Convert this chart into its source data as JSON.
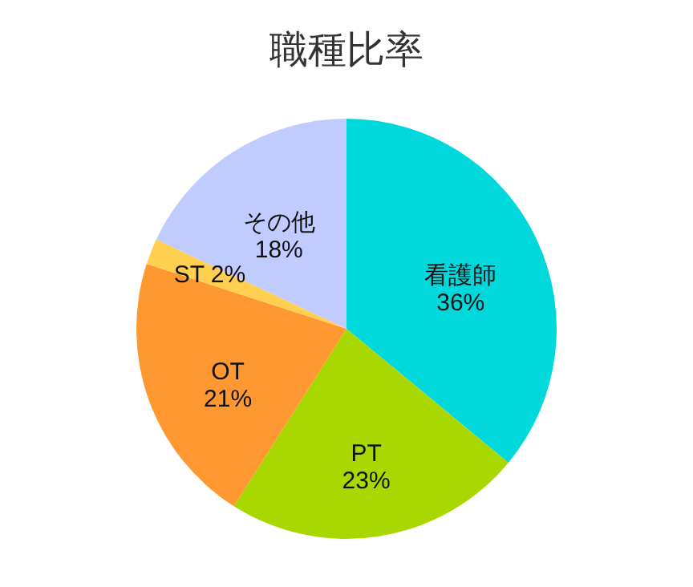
{
  "chart_data": {
    "type": "pie",
    "title": "職種比率",
    "categories": [
      "看護師",
      "PT",
      "OT",
      "ST",
      "その他"
    ],
    "values": [
      36,
      23,
      21,
      2,
      18
    ],
    "value_labels": [
      "36%",
      "23%",
      "21%",
      "2%",
      "18%"
    ],
    "colors": [
      "#00d8dc",
      "#a8d800",
      "#ff9830",
      "#ffd050",
      "#c0ccff"
    ],
    "legend": false
  }
}
